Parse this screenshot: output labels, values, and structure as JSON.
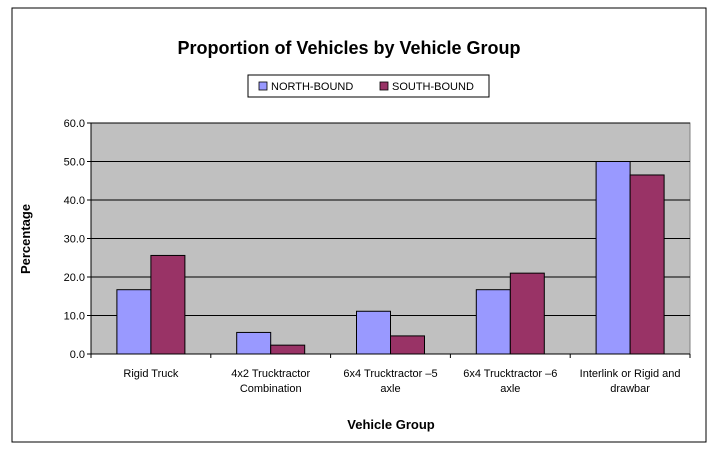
{
  "chart_data": {
    "type": "bar",
    "title": "Proportion of Vehicles by Vehicle Group",
    "xlabel": "Vehicle Group",
    "ylabel": "Percentage",
    "ylim": [
      0,
      60
    ],
    "yticks": [
      "0.0",
      "10.0",
      "20.0",
      "30.0",
      "40.0",
      "50.0",
      "60.0"
    ],
    "grid": true,
    "legend_position": "top-center",
    "categories": [
      [
        "Rigid Truck"
      ],
      [
        "4x2 Trucktractor",
        "Combination"
      ],
      [
        "6x4 Trucktractor –5",
        "axle"
      ],
      [
        "6x4 Trucktractor –6",
        "axle"
      ],
      [
        "Interlink or Rigid and",
        "drawbar"
      ]
    ],
    "series": [
      {
        "name": "NORTH-BOUND",
        "color": "#9999ff",
        "values": [
          16.7,
          5.6,
          11.1,
          16.7,
          50.0
        ]
      },
      {
        "name": "SOUTH-BOUND",
        "color": "#993366",
        "values": [
          25.6,
          2.3,
          4.7,
          21.0,
          46.5
        ]
      }
    ],
    "plot_background": "#c0c0c0"
  }
}
